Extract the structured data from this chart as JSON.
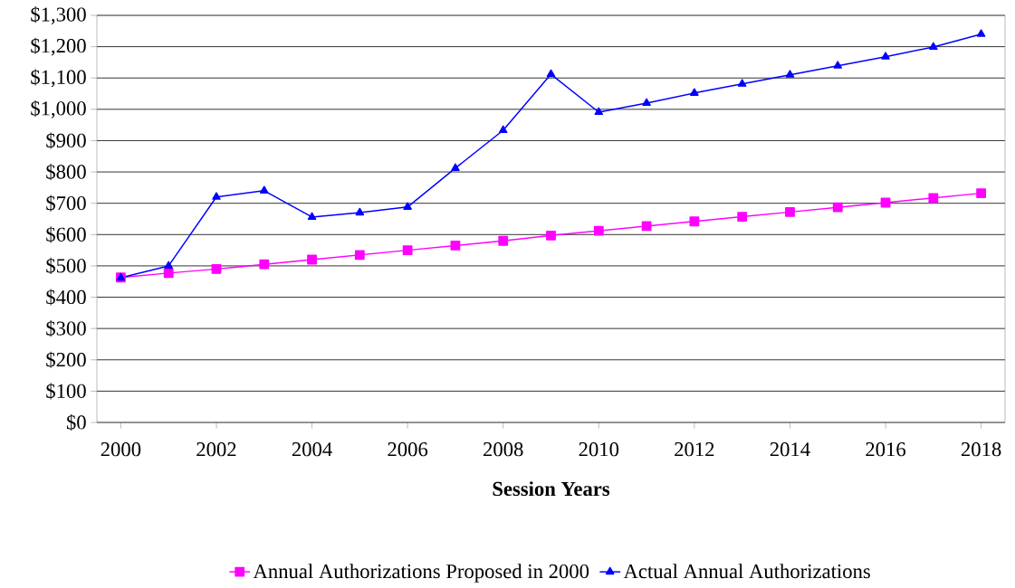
{
  "chart_data": {
    "type": "line",
    "xlabel": "Session Years",
    "x": [
      2000,
      2001,
      2002,
      2003,
      2004,
      2005,
      2006,
      2007,
      2008,
      2009,
      2010,
      2011,
      2012,
      2013,
      2014,
      2015,
      2016,
      2017,
      2018
    ],
    "series": [
      {
        "name": "Annual Authorizations Proposed in 2000",
        "color": "#ff00ff",
        "marker": "square",
        "values": [
          463,
          477,
          490,
          505,
          520,
          535,
          550,
          565,
          580,
          597,
          612,
          627,
          642,
          657,
          672,
          687,
          702,
          717,
          732
        ]
      },
      {
        "name": "Actual Annual Authorizations",
        "color": "#0000ff",
        "marker": "triangle",
        "values": [
          462,
          500,
          720,
          740,
          656,
          670,
          688,
          812,
          933,
          1112,
          991,
          1020,
          1052,
          1081,
          1110,
          1139,
          1168,
          1199,
          1240
        ]
      }
    ],
    "xlim": [
      1999.5,
      2018.5
    ],
    "xticks": [
      2000,
      2002,
      2004,
      2006,
      2008,
      2010,
      2012,
      2014,
      2016,
      2018
    ],
    "ylim": [
      0,
      1300
    ],
    "yticks": [
      {
        "value": 0,
        "label": "$0"
      },
      {
        "value": 100,
        "label": "$100"
      },
      {
        "value": 200,
        "label": "$200"
      },
      {
        "value": 300,
        "label": "$300"
      },
      {
        "value": 400,
        "label": "$400"
      },
      {
        "value": 500,
        "label": "$500"
      },
      {
        "value": 600,
        "label": "$600"
      },
      {
        "value": 700,
        "label": "$700"
      },
      {
        "value": 800,
        "label": "$800"
      },
      {
        "value": 900,
        "label": "$900"
      },
      {
        "value": 1000,
        "label": "$1,000"
      },
      {
        "value": 1100,
        "label": "$1,100"
      },
      {
        "value": 1200,
        "label": "$1,200"
      },
      {
        "value": 1300,
        "label": "$1,300"
      }
    ],
    "grid": "y",
    "legend": "bottom",
    "line_style": "solid"
  }
}
